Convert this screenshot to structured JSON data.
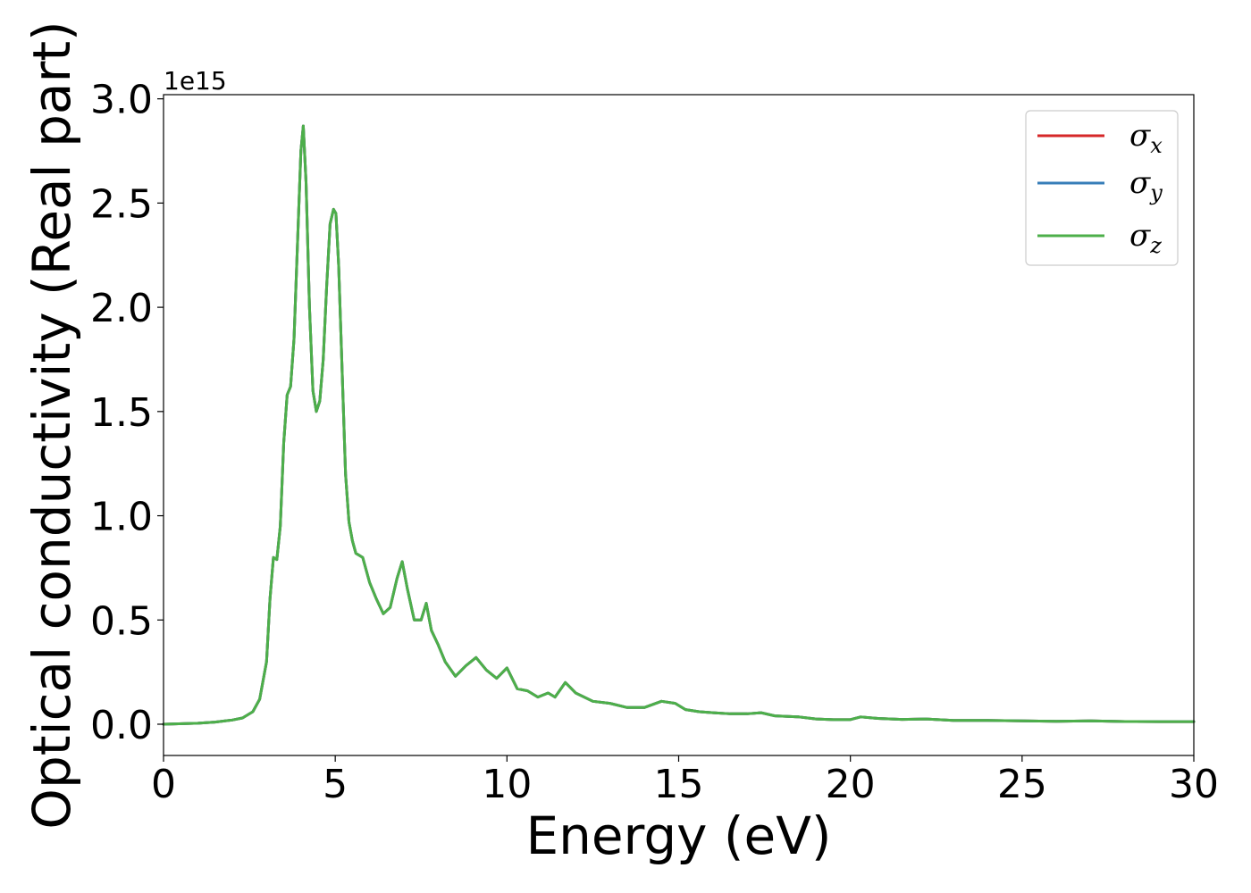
{
  "chart_data": {
    "type": "line",
    "xlabel": "Energy (eV)",
    "ylabel": "Optical conductivity (Real part)",
    "y_offset_label": "1e15",
    "xlim": [
      0,
      30
    ],
    "ylim": [
      -0.15,
      3.02
    ],
    "x_ticks": [
      0,
      5,
      10,
      15,
      20,
      25,
      30
    ],
    "x_tick_labels": [
      "0",
      "5",
      "10",
      "15",
      "20",
      "25",
      "30"
    ],
    "y_ticks": [
      0.0,
      0.5,
      1.0,
      1.5,
      2.0,
      2.5,
      3.0
    ],
    "y_tick_labels": [
      "0.0",
      "0.5",
      "1.0",
      "1.5",
      "2.0",
      "2.5",
      "3.0"
    ],
    "grid": false,
    "legend_position": "top-right",
    "series": [
      {
        "name": "σx",
        "symbol": "σ",
        "subscript": "x",
        "color": "#d62728",
        "x": [
          0,
          1,
          1.5,
          2,
          2.3,
          2.6,
          2.8,
          3.0,
          3.1,
          3.2,
          3.3,
          3.4,
          3.5,
          3.6,
          3.7,
          3.8,
          3.9,
          4.0,
          4.07,
          4.15,
          4.25,
          4.35,
          4.45,
          4.55,
          4.65,
          4.75,
          4.85,
          4.95,
          5.02,
          5.1,
          5.2,
          5.3,
          5.4,
          5.5,
          5.6,
          5.8,
          6.0,
          6.2,
          6.4,
          6.6,
          6.8,
          6.95,
          7.1,
          7.3,
          7.5,
          7.65,
          7.8,
          8.0,
          8.2,
          8.5,
          8.8,
          9.1,
          9.4,
          9.7,
          10.0,
          10.3,
          10.6,
          10.9,
          11.2,
          11.4,
          11.7,
          12.0,
          12.5,
          13.0,
          13.5,
          14.0,
          14.5,
          14.9,
          15.2,
          15.6,
          16.0,
          16.5,
          17.0,
          17.4,
          17.8,
          18.5,
          19.0,
          19.5,
          20.0,
          20.3,
          20.8,
          21.5,
          22.2,
          23.0,
          24.0,
          25.0,
          26.0,
          27.0,
          28.0,
          29.0,
          30.0
        ],
        "values": [
          0.0,
          0.005,
          0.01,
          0.02,
          0.03,
          0.06,
          0.12,
          0.3,
          0.6,
          0.8,
          0.79,
          0.95,
          1.35,
          1.58,
          1.62,
          1.85,
          2.3,
          2.75,
          2.87,
          2.6,
          2.0,
          1.6,
          1.5,
          1.55,
          1.75,
          2.1,
          2.4,
          2.47,
          2.45,
          2.2,
          1.7,
          1.2,
          0.97,
          0.88,
          0.82,
          0.8,
          0.68,
          0.6,
          0.53,
          0.56,
          0.7,
          0.78,
          0.65,
          0.5,
          0.5,
          0.58,
          0.45,
          0.38,
          0.3,
          0.23,
          0.28,
          0.32,
          0.26,
          0.22,
          0.27,
          0.17,
          0.16,
          0.13,
          0.15,
          0.13,
          0.2,
          0.15,
          0.11,
          0.1,
          0.08,
          0.08,
          0.11,
          0.1,
          0.07,
          0.06,
          0.055,
          0.05,
          0.05,
          0.055,
          0.04,
          0.035,
          0.025,
          0.022,
          0.022,
          0.035,
          0.028,
          0.023,
          0.025,
          0.018,
          0.018,
          0.016,
          0.014,
          0.016,
          0.013,
          0.012,
          0.012
        ]
      },
      {
        "name": "σy",
        "symbol": "σ",
        "subscript": "y",
        "color": "#377eb8",
        "x": [
          0,
          1,
          1.5,
          2,
          2.3,
          2.6,
          2.8,
          3.0,
          3.1,
          3.2,
          3.3,
          3.4,
          3.5,
          3.6,
          3.7,
          3.8,
          3.9,
          4.0,
          4.07,
          4.15,
          4.25,
          4.35,
          4.45,
          4.55,
          4.65,
          4.75,
          4.85,
          4.95,
          5.02,
          5.1,
          5.2,
          5.3,
          5.4,
          5.5,
          5.6,
          5.8,
          6.0,
          6.2,
          6.4,
          6.6,
          6.8,
          6.95,
          7.1,
          7.3,
          7.5,
          7.65,
          7.8,
          8.0,
          8.2,
          8.5,
          8.8,
          9.1,
          9.4,
          9.7,
          10.0,
          10.3,
          10.6,
          10.9,
          11.2,
          11.4,
          11.7,
          12.0,
          12.5,
          13.0,
          13.5,
          14.0,
          14.5,
          14.9,
          15.2,
          15.6,
          16.0,
          16.5,
          17.0,
          17.4,
          17.8,
          18.5,
          19.0,
          19.5,
          20.0,
          20.3,
          20.8,
          21.5,
          22.2,
          23.0,
          24.0,
          25.0,
          26.0,
          27.0,
          28.0,
          29.0,
          30.0
        ],
        "values": [
          0.0,
          0.005,
          0.01,
          0.02,
          0.03,
          0.06,
          0.12,
          0.3,
          0.6,
          0.8,
          0.79,
          0.95,
          1.35,
          1.58,
          1.62,
          1.85,
          2.3,
          2.75,
          2.87,
          2.6,
          2.0,
          1.6,
          1.5,
          1.55,
          1.75,
          2.1,
          2.4,
          2.47,
          2.45,
          2.2,
          1.7,
          1.2,
          0.97,
          0.88,
          0.82,
          0.8,
          0.68,
          0.6,
          0.53,
          0.56,
          0.7,
          0.78,
          0.65,
          0.5,
          0.5,
          0.58,
          0.45,
          0.38,
          0.3,
          0.23,
          0.28,
          0.32,
          0.26,
          0.22,
          0.27,
          0.17,
          0.16,
          0.13,
          0.15,
          0.13,
          0.2,
          0.15,
          0.11,
          0.1,
          0.08,
          0.08,
          0.11,
          0.1,
          0.07,
          0.06,
          0.055,
          0.05,
          0.05,
          0.055,
          0.04,
          0.035,
          0.025,
          0.022,
          0.022,
          0.035,
          0.028,
          0.023,
          0.025,
          0.018,
          0.018,
          0.016,
          0.014,
          0.016,
          0.013,
          0.012,
          0.012
        ]
      },
      {
        "name": "σz",
        "symbol": "σ",
        "subscript": "z",
        "color": "#4daf4a",
        "x": [
          0,
          1,
          1.5,
          2,
          2.3,
          2.6,
          2.8,
          3.0,
          3.1,
          3.2,
          3.3,
          3.4,
          3.5,
          3.6,
          3.7,
          3.8,
          3.9,
          4.0,
          4.07,
          4.15,
          4.25,
          4.35,
          4.45,
          4.55,
          4.65,
          4.75,
          4.85,
          4.95,
          5.02,
          5.1,
          5.2,
          5.3,
          5.4,
          5.5,
          5.6,
          5.8,
          6.0,
          6.2,
          6.4,
          6.6,
          6.8,
          6.95,
          7.1,
          7.3,
          7.5,
          7.65,
          7.8,
          8.0,
          8.2,
          8.5,
          8.8,
          9.1,
          9.4,
          9.7,
          10.0,
          10.3,
          10.6,
          10.9,
          11.2,
          11.4,
          11.7,
          12.0,
          12.5,
          13.0,
          13.5,
          14.0,
          14.5,
          14.9,
          15.2,
          15.6,
          16.0,
          16.5,
          17.0,
          17.4,
          17.8,
          18.5,
          19.0,
          19.5,
          20.0,
          20.3,
          20.8,
          21.5,
          22.2,
          23.0,
          24.0,
          25.0,
          26.0,
          27.0,
          28.0,
          29.0,
          30.0
        ],
        "values": [
          0.0,
          0.005,
          0.01,
          0.02,
          0.03,
          0.06,
          0.12,
          0.3,
          0.6,
          0.8,
          0.79,
          0.95,
          1.35,
          1.58,
          1.62,
          1.85,
          2.3,
          2.75,
          2.87,
          2.6,
          2.0,
          1.6,
          1.5,
          1.55,
          1.75,
          2.1,
          2.4,
          2.47,
          2.45,
          2.2,
          1.7,
          1.2,
          0.97,
          0.88,
          0.82,
          0.8,
          0.68,
          0.6,
          0.53,
          0.56,
          0.7,
          0.78,
          0.65,
          0.5,
          0.5,
          0.58,
          0.45,
          0.38,
          0.3,
          0.23,
          0.28,
          0.32,
          0.26,
          0.22,
          0.27,
          0.17,
          0.16,
          0.13,
          0.15,
          0.13,
          0.2,
          0.15,
          0.11,
          0.1,
          0.08,
          0.08,
          0.11,
          0.1,
          0.07,
          0.06,
          0.055,
          0.05,
          0.05,
          0.055,
          0.04,
          0.035,
          0.025,
          0.022,
          0.022,
          0.035,
          0.028,
          0.023,
          0.025,
          0.018,
          0.018,
          0.016,
          0.014,
          0.016,
          0.013,
          0.012,
          0.012
        ]
      }
    ]
  }
}
